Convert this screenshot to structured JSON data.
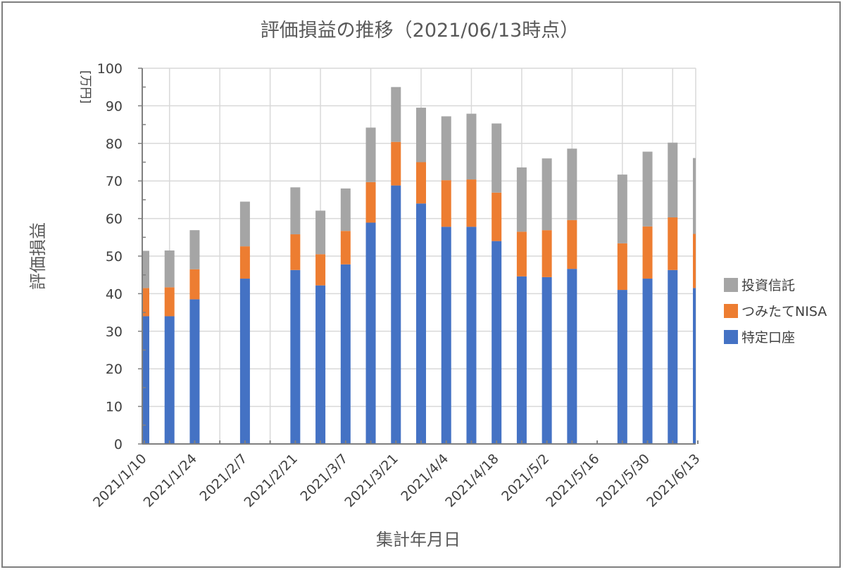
{
  "chart_data": {
    "type": "bar",
    "stacked": true,
    "title": "評価損益の推移（2021/06/13時点）",
    "xlabel": "集計年月日",
    "ylabel": "評価損益",
    "yunit": "[万円]",
    "ylim": [
      0,
      100
    ],
    "ytick_step": 10,
    "grid": true,
    "legend_position": "right",
    "x_tick_labels": [
      "2021/1/10",
      "2021/1/24",
      "2021/2/7",
      "2021/2/21",
      "2021/3/7",
      "2021/3/21",
      "2021/4/4",
      "2021/4/18",
      "2021/5/2",
      "2021/5/16",
      "2021/5/30",
      "2021/6/13"
    ],
    "categories": [
      "2021/1/10",
      "2021/1/17",
      "2021/1/24",
      "2021/1/31",
      "2021/2/7",
      "2021/2/14",
      "2021/2/21",
      "2021/2/28",
      "2021/3/7",
      "2021/3/14",
      "2021/3/21",
      "2021/3/28",
      "2021/4/4",
      "2021/4/11",
      "2021/4/18",
      "2021/4/25",
      "2021/5/2",
      "2021/5/9",
      "2021/5/16",
      "2021/5/23",
      "2021/5/30",
      "2021/6/6",
      "2021/6/13"
    ],
    "series": [
      {
        "name": "特定口座",
        "color": "#4472c4",
        "values": [
          34,
          34,
          38.5,
          null,
          44,
          null,
          46.3,
          42.2,
          47.8,
          58.9,
          68.8,
          64,
          57.8,
          57.8,
          54,
          44.6,
          44.4,
          46.6,
          null,
          41,
          44,
          46.3,
          41.5
        ]
      },
      {
        "name": "つみたてNISA",
        "color": "#ed7d31",
        "values": [
          7.5,
          7.7,
          8,
          null,
          8.6,
          null,
          9.5,
          8.3,
          8.9,
          10.8,
          11.6,
          11,
          12.4,
          12.6,
          12.9,
          11.9,
          12.5,
          13,
          null,
          12.4,
          13.9,
          14,
          14.4
        ]
      },
      {
        "name": "投資信託",
        "color": "#a5a5a5",
        "values": [
          9.9,
          9.8,
          10.4,
          null,
          11.9,
          null,
          12.5,
          11.6,
          11.3,
          14.5,
          14.6,
          14.5,
          17,
          17.5,
          18.4,
          17.1,
          19.1,
          19,
          null,
          18.3,
          19.9,
          19.9,
          20.2
        ]
      }
    ]
  }
}
